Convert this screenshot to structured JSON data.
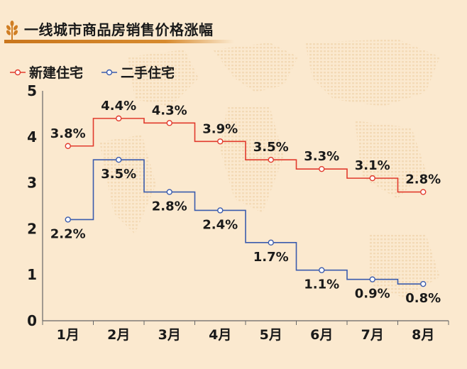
{
  "title": "一线城市商品房销售价格涨幅",
  "colors": {
    "background": "#fbe9cf",
    "title_bar": "#d07e24",
    "new_series": "#e13b2d",
    "second_series": "#3b5cad",
    "axis": "#555555",
    "text": "#1a1a1a"
  },
  "chart_data": {
    "type": "line",
    "step": "center",
    "categories": [
      "1月",
      "2月",
      "3月",
      "4月",
      "5月",
      "6月",
      "7月",
      "8月"
    ],
    "y_ticks": [
      "0",
      "1",
      "2",
      "3",
      "4",
      "5"
    ],
    "ylim": [
      0,
      5
    ],
    "grid": false,
    "legend_position": "top-left",
    "series": [
      {
        "name": "新建住宅",
        "color": "#e13b2d",
        "values": [
          3.8,
          4.4,
          4.3,
          3.9,
          3.5,
          3.3,
          3.1,
          2.8
        ],
        "labels": [
          "3.8%",
          "4.4%",
          "4.3%",
          "3.9%",
          "3.5%",
          "3.3%",
          "3.1%",
          "2.8%"
        ],
        "label_placement": "above"
      },
      {
        "name": "二手住宅",
        "color": "#3b5cad",
        "values": [
          2.2,
          3.5,
          2.8,
          2.4,
          1.7,
          1.1,
          0.9,
          0.8
        ],
        "labels": [
          "2.2%",
          "3.5%",
          "2.8%",
          "2.4%",
          "1.7%",
          "1.1%",
          "0.9%",
          "0.8%"
        ],
        "label_placement": "below"
      }
    ]
  }
}
